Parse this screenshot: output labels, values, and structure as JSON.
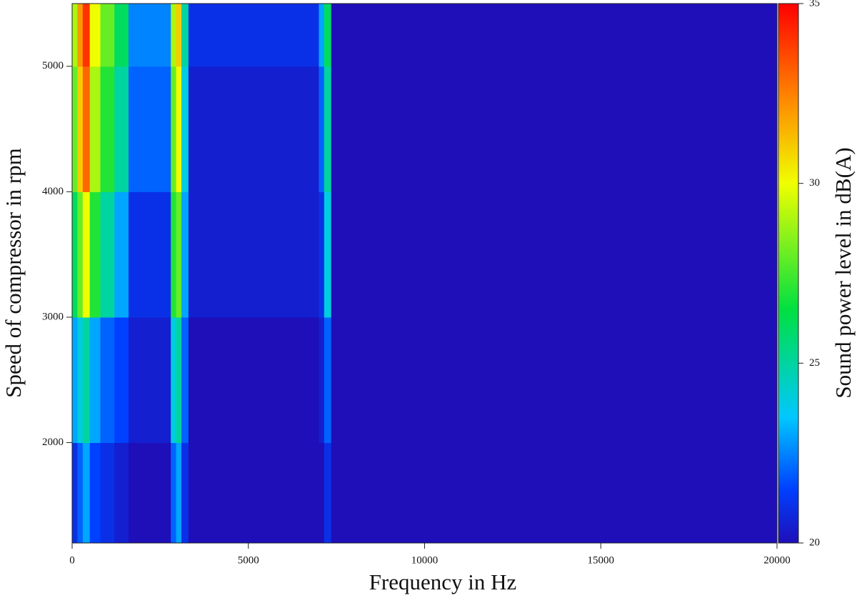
{
  "chart_data": {
    "type": "heatmap",
    "xlabel": "Frequency in Hz",
    "ylabel": "Speed of compressor in rpm",
    "colorbar_label": "Sound power level in dB(A)",
    "x": [
      0,
      150,
      300,
      500,
      800,
      1200,
      1600,
      2800,
      2950,
      3100,
      3300,
      7000,
      7150,
      7350,
      20000
    ],
    "y": [
      1200,
      2000,
      3000,
      4000,
      5000,
      5500
    ],
    "z": [
      [
        21,
        22,
        23,
        21.5,
        21,
        20.5,
        20,
        22,
        23,
        21,
        20,
        20,
        21,
        20
      ],
      [
        23,
        24,
        25,
        23,
        22,
        21.5,
        20.5,
        24,
        25,
        22,
        20,
        20.5,
        22,
        20
      ],
      [
        26,
        28,
        30,
        27,
        25,
        23,
        21,
        27,
        28,
        23,
        20.5,
        21,
        24,
        20
      ],
      [
        28,
        31,
        33,
        29,
        27,
        25,
        22,
        28,
        30,
        24,
        20.5,
        22,
        25,
        20
      ],
      [
        29,
        32,
        34,
        30,
        28,
        26,
        22.5,
        29,
        31,
        25,
        21,
        23,
        26,
        20
      ]
    ],
    "xlim": [
      0,
      20000
    ],
    "xticks": [
      0,
      5000,
      10000,
      15000,
      20000
    ],
    "ylim": [
      1200,
      5500
    ],
    "yticks": [
      2000,
      3000,
      4000,
      5000
    ],
    "clim": [
      20,
      35
    ],
    "cticks": [
      20,
      25,
      30,
      35
    ],
    "colormap": [
      [
        20,
        "#1e0fb8"
      ],
      [
        21.5,
        "#0040ff"
      ],
      [
        23.5,
        "#00c8ff"
      ],
      [
        26.5,
        "#00e040"
      ],
      [
        30,
        "#f0ff00"
      ],
      [
        32.5,
        "#ff8000"
      ],
      [
        35,
        "#ff0000"
      ]
    ]
  }
}
